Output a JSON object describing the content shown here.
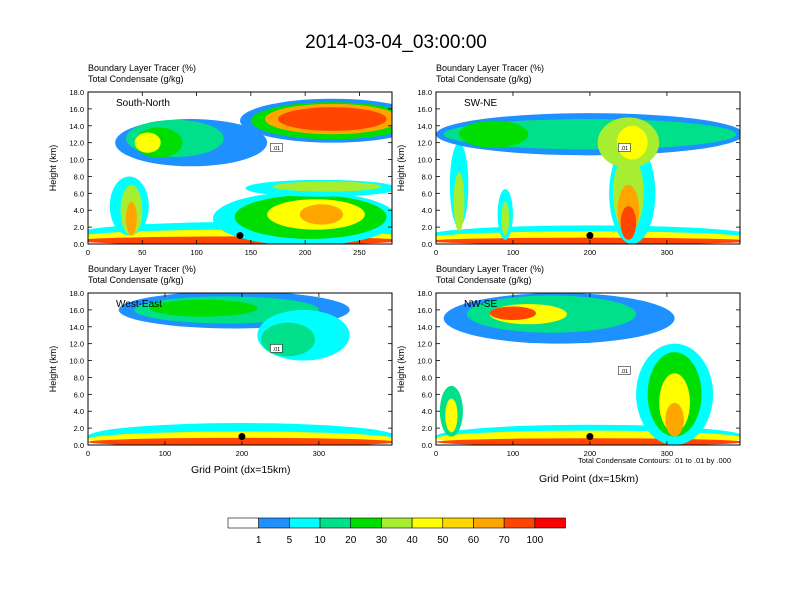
{
  "title": "2014-03-04_03:00:00",
  "subtitle_line1": "Boundary Layer Tracer   (%)",
  "subtitle_line2": "Total Condensate   (g/kg)",
  "xlabel": "Grid Point (dx=15km)",
  "contour_note": "Total Condensate Contours: .01 to .01 by .000",
  "chart_data": [
    {
      "type": "heatmap",
      "panel": "South-North",
      "ylabel": "Height (km)",
      "xlim": [
        0,
        280
      ],
      "ylim": [
        0,
        18
      ],
      "xticks": [
        0,
        50,
        100,
        150,
        200,
        250
      ],
      "yticks": [
        0,
        2,
        4,
        6,
        8,
        10,
        12,
        14,
        16,
        18
      ],
      "marker_x": 140,
      "contour_label": ".01"
    },
    {
      "type": "heatmap",
      "panel": "SW-NE",
      "ylabel": "Height (km)",
      "xlim": [
        0,
        395
      ],
      "ylim": [
        0,
        18
      ],
      "xticks": [
        0,
        100,
        200,
        300
      ],
      "yticks": [
        0,
        2,
        4,
        6,
        8,
        10,
        12,
        14,
        16,
        18
      ],
      "marker_x": 200,
      "contour_label": ".01"
    },
    {
      "type": "heatmap",
      "panel": "West-East",
      "ylabel": "Height (km)",
      "xlim": [
        0,
        395
      ],
      "ylim": [
        0,
        18
      ],
      "xticks": [
        0,
        100,
        200,
        300
      ],
      "yticks": [
        0,
        2,
        4,
        6,
        8,
        10,
        12,
        14,
        16,
        18
      ],
      "marker_x": 200,
      "contour_label": ".01"
    },
    {
      "type": "heatmap",
      "panel": "NW-SE",
      "ylabel": "Height (km)",
      "xlim": [
        0,
        395
      ],
      "ylim": [
        0,
        18
      ],
      "xticks": [
        0,
        100,
        200,
        300
      ],
      "yticks": [
        0,
        2,
        4,
        6,
        8,
        10,
        12,
        14,
        16,
        18
      ],
      "marker_x": 200,
      "contour_label": ".01"
    }
  ],
  "colorbar": {
    "colors": [
      "#ffffff",
      "#1e90ff",
      "#00ffff",
      "#00e08a",
      "#00dd00",
      "#a8ee30",
      "#ffff00",
      "#ffd700",
      "#ffa500",
      "#ff4500",
      "#ff0000"
    ],
    "labels": [
      "1",
      "5",
      "10",
      "20",
      "30",
      "40",
      "50",
      "60",
      "70",
      "100"
    ]
  }
}
